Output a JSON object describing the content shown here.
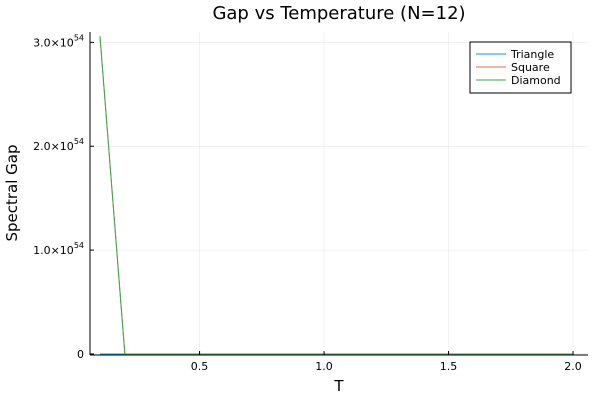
{
  "chart_data": {
    "type": "line",
    "title": "Gap vs Temperature (N=12)",
    "xlabel": "T",
    "ylabel": "Spectral Gap",
    "xlim": [
      0.06,
      2.06
    ],
    "ylim": [
      -1e+52,
      3.1e+54
    ],
    "x_ticks": [
      {
        "value": 0.5,
        "label": "0.5"
      },
      {
        "value": 1.0,
        "label": "1.0"
      },
      {
        "value": 1.5,
        "label": "1.5"
      },
      {
        "value": 2.0,
        "label": "2.0"
      }
    ],
    "y_ticks": [
      {
        "value": 0,
        "mantissa": "0",
        "exponent": ""
      },
      {
        "value": 1e+54,
        "mantissa": "1.0×10",
        "exponent": "54"
      },
      {
        "value": 2e+54,
        "mantissa": "2.0×10",
        "exponent": "54"
      },
      {
        "value": 3e+54,
        "mantissa": "3.0×10",
        "exponent": "54"
      }
    ],
    "grid": true,
    "legend_position": "top-right",
    "series": [
      {
        "name": "Triangle",
        "color": "#009AFA",
        "x": [
          0.1,
          0.2,
          2.0
        ],
        "y": [
          0,
          0,
          0
        ]
      },
      {
        "name": "Square",
        "color": "#E36F47",
        "x": [
          0.1,
          0.2,
          2.0
        ],
        "y": [
          3.06e+54,
          0,
          0
        ]
      },
      {
        "name": "Diamond",
        "color": "#3EA44E",
        "x": [
          0.1,
          0.2,
          2.0
        ],
        "y": [
          3.06e+54,
          0,
          0
        ]
      }
    ]
  }
}
